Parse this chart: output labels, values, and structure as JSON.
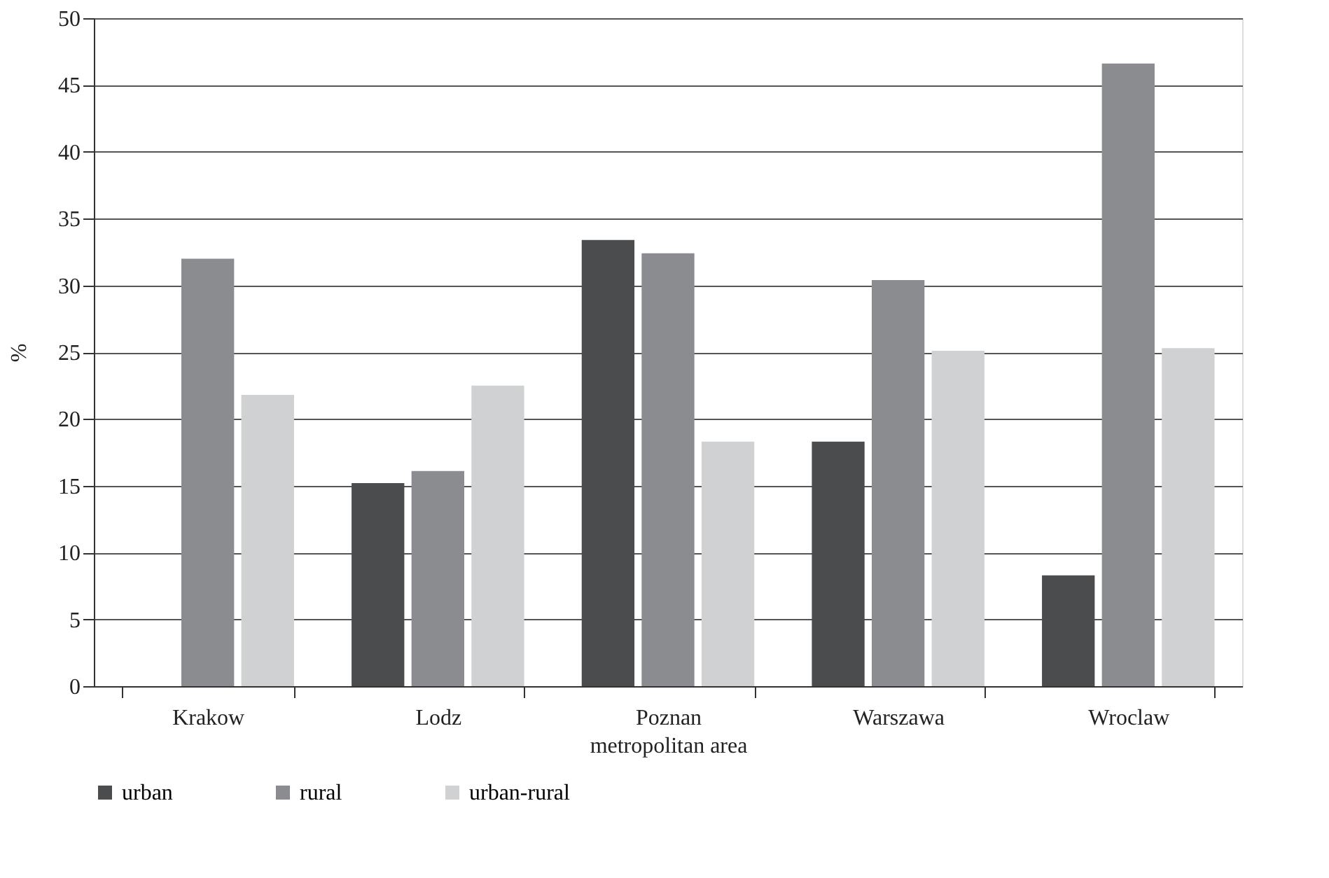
{
  "chart_data": {
    "type": "bar",
    "xlabel": "metropolitan area",
    "ylabel": "%",
    "categories": [
      "Krakow",
      "Lodz",
      "Poznan",
      "Warszawa",
      "Wroclaw"
    ],
    "series": [
      {
        "name": "urban",
        "color": "#4b4c4e",
        "values": [
          0,
          15.2,
          33.4,
          18.3,
          8.3
        ]
      },
      {
        "name": "rural",
        "color": "#8b8c90",
        "values": [
          32.0,
          16.1,
          32.4,
          30.4,
          46.6
        ]
      },
      {
        "name": "urban-rural",
        "color": "#d0d1d3",
        "values": [
          21.8,
          22.5,
          18.3,
          25.1,
          25.3
        ]
      }
    ],
    "ylim": [
      0,
      50
    ],
    "yticks": [
      0,
      5,
      10,
      15,
      20,
      25,
      30,
      35,
      40,
      45,
      50
    ],
    "grid": "y",
    "legend": "bottom"
  }
}
